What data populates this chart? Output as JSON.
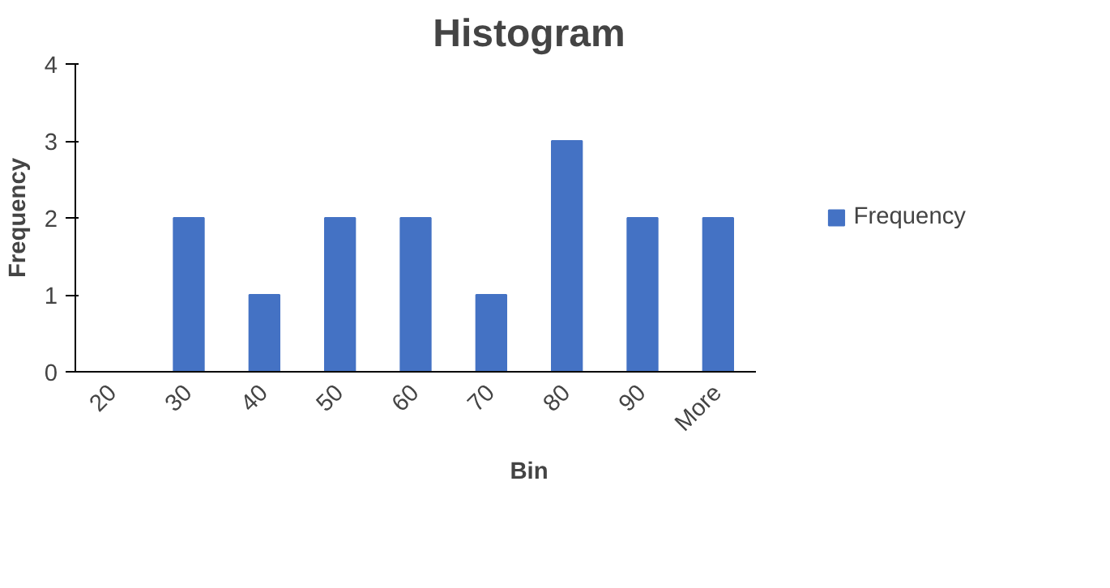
{
  "chart_data": {
    "type": "bar",
    "title": "Histogram",
    "xlabel": "Bin",
    "ylabel": "Frequency",
    "categories": [
      "20",
      "30",
      "40",
      "50",
      "60",
      "70",
      "80",
      "90",
      "More"
    ],
    "series": [
      {
        "name": "Frequency",
        "color": "#4472c4",
        "values": [
          0,
          2,
          1,
          2,
          2,
          1,
          3,
          2,
          2
        ]
      }
    ],
    "ylim": [
      0,
      4
    ],
    "yticks": [
      0,
      1,
      2,
      3,
      4
    ],
    "grid": false,
    "legend": "right"
  }
}
